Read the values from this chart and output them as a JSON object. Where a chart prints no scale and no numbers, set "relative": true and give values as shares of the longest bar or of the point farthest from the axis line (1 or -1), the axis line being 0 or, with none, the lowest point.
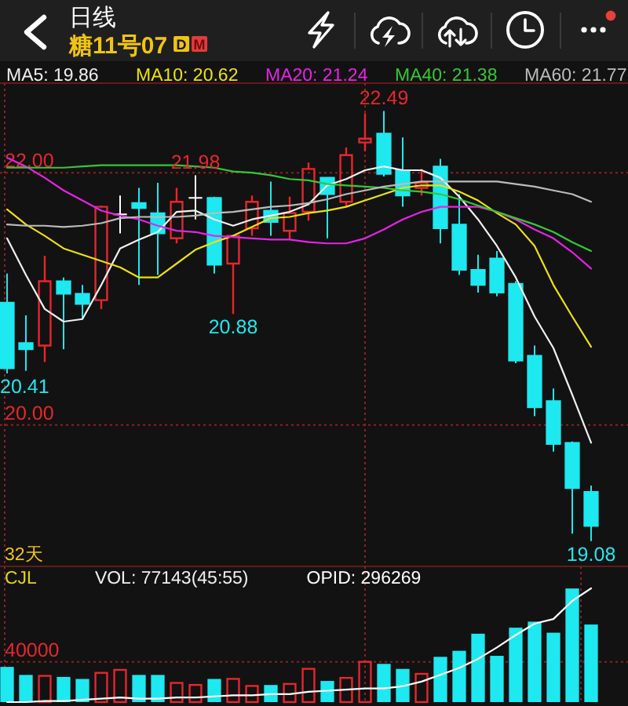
{
  "chart_data": [
    {
      "type": "candlestick",
      "title": "日线",
      "subtitle": "糖11号07",
      "categories": [
        null,
        null,
        null,
        null,
        null,
        null,
        null,
        null,
        null,
        null,
        null,
        null,
        null,
        null,
        null,
        null,
        null,
        null,
        null,
        null,
        null,
        null,
        null,
        null,
        null,
        null,
        null,
        null,
        null,
        null,
        null,
        null
      ],
      "ohlc": [
        [
          20.97,
          21.2,
          20.41,
          20.45
        ],
        [
          20.65,
          20.87,
          20.43,
          20.6
        ],
        [
          20.63,
          21.34,
          20.5,
          21.14
        ],
        [
          21.14,
          21.17,
          20.6,
          21.04
        ],
        [
          21.04,
          21.11,
          20.84,
          20.96
        ],
        [
          20.99,
          21.74,
          20.92,
          21.73
        ],
        [
          21.67,
          21.82,
          21.52,
          21.67
        ],
        [
          21.76,
          21.88,
          21.11,
          21.72
        ],
        [
          21.68,
          21.92,
          21.19,
          21.52
        ],
        [
          21.48,
          21.88,
          21.44,
          21.77
        ],
        [
          21.8,
          21.98,
          21.63,
          21.8
        ],
        [
          21.8,
          21.81,
          21.2,
          21.27
        ],
        [
          21.28,
          21.51,
          20.88,
          21.5
        ],
        [
          21.56,
          21.82,
          21.5,
          21.77
        ],
        [
          21.7,
          21.93,
          21.5,
          21.61
        ],
        [
          21.54,
          21.81,
          21.47,
          21.68
        ],
        [
          21.69,
          22.08,
          21.62,
          22.03
        ],
        [
          21.96,
          21.96,
          21.48,
          21.83
        ],
        [
          21.77,
          22.2,
          21.73,
          22.14
        ],
        [
          22.24,
          22.47,
          22.17,
          22.27
        ],
        [
          22.31,
          22.49,
          21.97,
          21.99
        ],
        [
          22.02,
          22.28,
          21.73,
          21.82
        ],
        [
          21.88,
          22.03,
          21.82,
          21.92
        ],
        [
          22.05,
          22.11,
          21.44,
          21.56
        ],
        [
          21.59,
          21.83,
          21.19,
          21.23
        ],
        [
          21.23,
          21.35,
          21.05,
          21.11
        ],
        [
          21.32,
          21.38,
          21.02,
          21.05
        ],
        [
          21.12,
          21.14,
          20.49,
          20.51
        ],
        [
          20.55,
          20.63,
          20.07,
          20.14
        ],
        [
          20.19,
          20.29,
          19.79,
          19.85
        ],
        [
          19.86,
          19.87,
          19.14,
          19.5
        ],
        [
          19.47,
          19.52,
          19.08,
          19.2
        ]
      ],
      "colors": [
        "#1ee8f0",
        "#1ee8f0",
        "#e8262c",
        "#1ee8f0",
        "#1ee8f0",
        "#e8262c",
        "#ffffff",
        "#1ee8f0",
        "#1ee8f0",
        "#e8262c",
        "#ffffff",
        "#1ee8f0",
        "#e8262c",
        "#e8262c",
        "#1ee8f0",
        "#e8262c",
        "#e8262c",
        "#1ee8f0",
        "#e8262c",
        "#e8262c",
        "#1ee8f0",
        "#1ee8f0",
        "#e8262c",
        "#1ee8f0",
        "#1ee8f0",
        "#1ee8f0",
        "#1ee8f0",
        "#1ee8f0",
        "#1ee8f0",
        "#1ee8f0",
        "#1ee8f0",
        "#1ee8f0"
      ],
      "series": [
        {
          "name": "MA5: 19.86",
          "type": "line",
          "color": "#f0f0f0",
          "values": [
            21.48,
            21.19,
            20.92,
            20.82,
            20.84,
            21.11,
            21.4,
            21.47,
            21.53,
            21.69,
            21.7,
            21.63,
            21.58,
            21.63,
            21.66,
            21.69,
            21.75,
            21.9,
            21.95,
            22.02,
            22.05,
            22.02,
            22.02,
            21.96,
            21.81,
            21.63,
            21.42,
            21.17,
            20.86,
            20.61,
            20.24,
            19.86
          ]
        },
        {
          "name": "MA10: 20.62",
          "type": "line",
          "color": "#ece20a",
          "values": [
            21.71,
            21.59,
            21.5,
            21.4,
            21.35,
            21.3,
            21.25,
            21.17,
            21.17,
            21.28,
            21.39,
            21.45,
            21.5,
            21.57,
            21.64,
            21.65,
            21.68,
            21.7,
            21.73,
            21.78,
            21.83,
            21.88,
            21.9,
            21.9,
            21.85,
            21.78,
            21.68,
            21.59,
            21.42,
            21.11,
            20.86,
            20.62
          ]
        },
        {
          "name": "MA20: 21.24",
          "type": "line",
          "color": "#e822e8",
          "values": [
            22.12,
            22.05,
            21.96,
            21.86,
            21.78,
            21.7,
            21.66,
            21.63,
            21.58,
            21.54,
            21.53,
            21.5,
            21.49,
            21.48,
            21.47,
            21.47,
            21.45,
            21.44,
            21.44,
            21.48,
            21.55,
            21.63,
            21.69,
            21.73,
            21.73,
            21.73,
            21.69,
            21.63,
            21.55,
            21.48,
            21.37,
            21.24
          ]
        },
        {
          "name": "MA40: 21.38",
          "type": "line",
          "color": "#34c834",
          "values": [
            22.04,
            22.04,
            22.04,
            22.04,
            22.05,
            22.06,
            22.06,
            22.06,
            22.06,
            22.06,
            22.05,
            22.04,
            22.01,
            22.0,
            21.98,
            21.95,
            21.94,
            21.91,
            21.9,
            21.89,
            21.88,
            21.86,
            21.85,
            21.83,
            21.79,
            21.74,
            21.69,
            21.64,
            21.59,
            21.53,
            21.45,
            21.38
          ]
        },
        {
          "name": "MA60: 21.77",
          "type": "line",
          "color": "#bcbcbc",
          "values": [
            21.59,
            21.58,
            21.58,
            21.57,
            21.58,
            21.6,
            21.64,
            21.65,
            21.65,
            21.65,
            21.66,
            21.68,
            21.69,
            21.71,
            21.73,
            21.74,
            21.76,
            21.79,
            21.83,
            21.86,
            21.89,
            21.91,
            21.93,
            21.93,
            21.93,
            21.93,
            21.93,
            21.91,
            21.89,
            21.86,
            21.83,
            21.77
          ]
        }
      ],
      "ylim": [
        18.88,
        22.71
      ],
      "yticks": [
        {
          "value": 22,
          "label": "22.00"
        },
        {
          "value": 20,
          "label": "20.00"
        }
      ],
      "grid": "y",
      "legend": "top",
      "annotations": [
        "D",
        "M",
        "32天",
        {
          "text": "22.49",
          "y": 22.49
        },
        {
          "text": "21.98",
          "y": 21.98
        },
        {
          "text": "20.88",
          "y": 20.88
        },
        {
          "text": "20.41",
          "y": 20.41
        },
        {
          "text": "19.08",
          "y": 19.08
        }
      ]
    },
    {
      "type": "bar",
      "title": "CJL",
      "categories": [
        null,
        null,
        null,
        null,
        null,
        null,
        null,
        null,
        null,
        null,
        null,
        null,
        null,
        null,
        null,
        null,
        null,
        null,
        null,
        null,
        null,
        null,
        null,
        null,
        null,
        null,
        null,
        null,
        null,
        null,
        null,
        null
      ],
      "values": [
        35000,
        27000,
        27000,
        25000,
        23000,
        30000,
        33000,
        27000,
        27000,
        20000,
        18000,
        23000,
        24000,
        17000,
        17000,
        19000,
        34000,
        21000,
        25000,
        41000,
        38000,
        33000,
        29000,
        45000,
        51000,
        68000,
        46000,
        74000,
        80000,
        69000,
        113000,
        77143
      ],
      "colors": [
        "#1ee8f0",
        "#1ee8f0",
        "#e8262c",
        "#1ee8f0",
        "#1ee8f0",
        "#e8262c",
        "#e8262c",
        "#1ee8f0",
        "#1ee8f0",
        "#e8262c",
        "#e8262c",
        "#1ee8f0",
        "#e8262c",
        "#e8262c",
        "#1ee8f0",
        "#e8262c",
        "#e8262c",
        "#1ee8f0",
        "#e8262c",
        "#e8262c",
        "#1ee8f0",
        "#1ee8f0",
        "#e8262c",
        "#1ee8f0",
        "#1ee8f0",
        "#1ee8f0",
        "#1ee8f0",
        "#1ee8f0",
        "#1ee8f0",
        "#1ee8f0",
        "#1ee8f0",
        "#1ee8f0"
      ],
      "ylim": [
        0,
        135000
      ],
      "yticks": [
        40000
      ],
      "grid": "y",
      "annotations": [
        "VOL: 77143(45:55)"
      ]
    },
    {
      "type": "line",
      "relative": true,
      "categories": [
        null,
        null,
        null,
        null,
        null,
        null,
        null,
        null,
        null,
        null,
        null,
        null,
        null,
        null,
        null,
        null,
        null,
        null,
        null,
        null,
        null,
        null,
        null,
        null,
        null,
        null,
        null,
        null,
        null,
        null,
        null,
        null
      ],
      "series": [
        {
          "name": "OPID: 296269",
          "color": "#ffffff",
          "values": [
            0,
            0,
            0.01,
            0.01,
            0.02,
            0.03,
            0.04,
            0.03,
            0.03,
            0.04,
            0.04,
            0.05,
            0.06,
            0.06,
            0.07,
            0.07,
            0.09,
            0.1,
            0.11,
            0.12,
            0.12,
            0.14,
            0.18,
            0.24,
            0.3,
            0.38,
            0.48,
            0.59,
            0.69,
            0.73,
            0.89,
            1
          ]
        }
      ],
      "legend": "top"
    }
  ]
}
